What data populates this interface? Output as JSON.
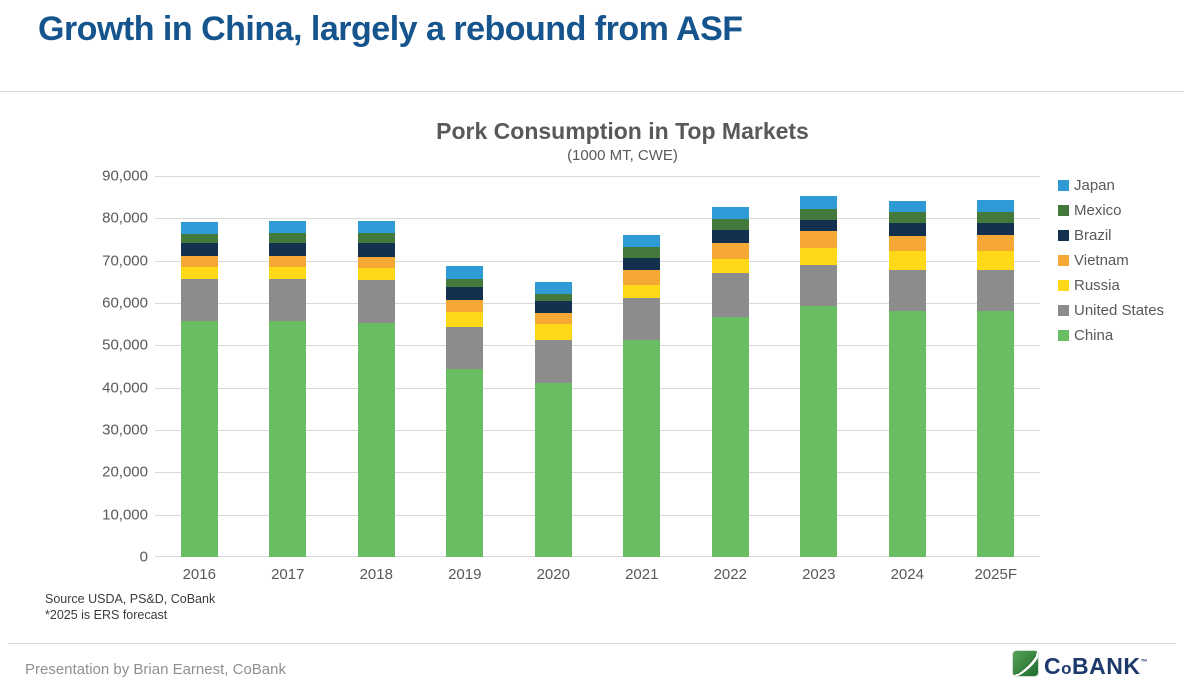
{
  "page": {
    "title": "Growth in China, largely a rebound from ASF",
    "source_line1": "Source USDA, PS&D, CoBank",
    "source_line2": "*2025 is ERS forecast",
    "footer": "Presentation by Brian Earnest, CoBank",
    "logo": {
      "c": "C",
      "o": "o",
      "rest": "BANK",
      "tm": "™"
    },
    "colors": {
      "title": "#15548C",
      "axis_text": "#595959",
      "gridline": "#D9D9D9",
      "logo_text": "#1E3A6D",
      "logo_green_dark": "#1E6B2E",
      "logo_green_light": "#57A257"
    }
  },
  "chart_data": {
    "type": "bar",
    "stacked": true,
    "title": "Pork Consumption in Top Markets",
    "subtitle": "(1000 MT, CWE)",
    "xlabel": "",
    "ylabel": "",
    "ylim": [
      0,
      90000
    ],
    "grid": true,
    "legend_position": "right",
    "categories": [
      "2016",
      "2017",
      "2018",
      "2019",
      "2020",
      "2021",
      "2022",
      "2023",
      "2024",
      "2025F"
    ],
    "y_ticks": [
      {
        "value": 90000,
        "label": "90,000"
      },
      {
        "value": 80000,
        "label": "80,000"
      },
      {
        "value": 70000,
        "label": "70,000"
      },
      {
        "value": 60000,
        "label": "60,000"
      },
      {
        "value": 50000,
        "label": "50,000"
      },
      {
        "value": 40000,
        "label": "40,000"
      },
      {
        "value": 30000,
        "label": "30,000"
      },
      {
        "value": 20000,
        "label": "20,000"
      },
      {
        "value": 10000,
        "label": "10,000"
      },
      {
        "value": 0,
        "label": "0"
      }
    ],
    "series": [
      {
        "name": "Japan",
        "color": "#2E9BD6",
        "values": [
          2700,
          2800,
          2800,
          3000,
          2800,
          2800,
          2800,
          3000,
          2700,
          2800
        ]
      },
      {
        "name": "Mexico",
        "color": "#44793C",
        "values": [
          2100,
          2300,
          2300,
          2000,
          1800,
          2500,
          2600,
          2700,
          2600,
          2700
        ]
      },
      {
        "name": "Brazil",
        "color": "#13304F",
        "values": [
          3300,
          3200,
          3500,
          3000,
          2800,
          2800,
          3000,
          2600,
          3000,
          2800
        ]
      },
      {
        "name": "Vietnam",
        "color": "#F5A833",
        "values": [
          2400,
          2500,
          2600,
          2900,
          2600,
          3700,
          3700,
          3900,
          3600,
          3900
        ]
      },
      {
        "name": "Russia",
        "color": "#FFD918",
        "values": [
          3000,
          3000,
          2800,
          3500,
          3800,
          3100,
          3500,
          4000,
          4300,
          4300
        ]
      },
      {
        "name": "United States",
        "color": "#8C8C8C",
        "values": [
          9900,
          9900,
          10200,
          9800,
          10100,
          9900,
          10400,
          9700,
          9800,
          9800
        ]
      },
      {
        "name": "China",
        "color": "#69BD63",
        "values": [
          55700,
          55700,
          55200,
          44500,
          41100,
          51200,
          56600,
          59300,
          58100,
          58100
        ]
      }
    ]
  }
}
